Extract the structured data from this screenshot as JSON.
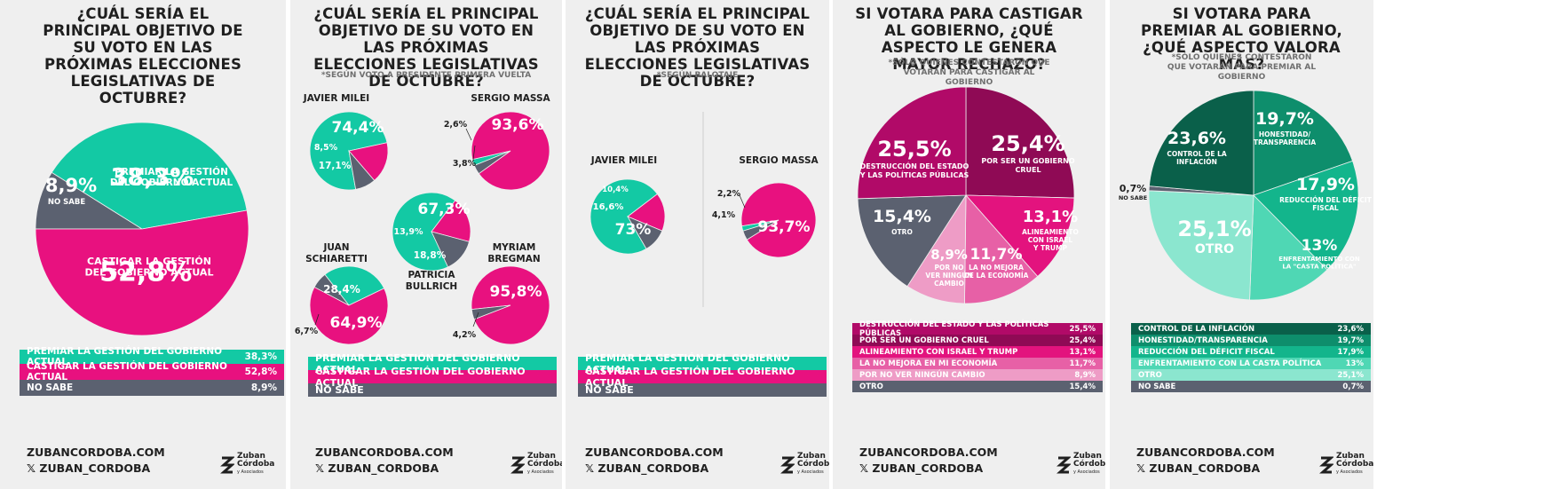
{
  "colors": {
    "teal": "#13c9a4",
    "magenta": "#e8117f",
    "gray": "#5b6170",
    "divider": "#cccccc"
  },
  "footer": {
    "site": "ZUBANCORDOBA.COM",
    "handle": "𝕏 ZUBAN_CORDOBA",
    "logo_line1": "Zuban",
    "logo_line2": "Córdoba",
    "logo_sub": "y Asociados"
  },
  "panel1": {
    "title": "¿CUÁL SERÍA EL PRINCIPAL OBJETIVO DE SU VOTO EN LAS PRÓXIMAS ELECCIONES LEGISLATIVAS DE OCTUBRE?",
    "legend": [
      {
        "label": "PREMIAR LA GESTIÓN DEL GOBIERNO ACTUAL",
        "value": "38,3%"
      },
      {
        "label": "CASTIGAR  LA GESTIÓN DEL GOBIERNO ACTUAL",
        "value": "52,8%"
      },
      {
        "label": "NO SABE",
        "value": "8,9%"
      }
    ]
  },
  "panel2": {
    "title": "¿CUÁL SERÍA EL PRINCIPAL OBJETIVO DE SU VOTO EN LAS PRÓXIMAS ELECCIONES LEGISLATIVAS DE OCTUBRE?",
    "note": "*SEGÚN VOTO A PRESIDENTE PRIMERA VUELTA",
    "legend": [
      {
        "label": "PREMIAR LA GESTIÓN DEL GOBIERNO ACTUAL"
      },
      {
        "label": "CASTIGAR LA GESTIÓN DEL GOBIERNO ACTUAL"
      },
      {
        "label": "NO SABE"
      }
    ]
  },
  "panel3": {
    "title": "¿CUÁL SERÍA EL PRINCIPAL OBJETIVO DE SU VOTO EN LAS PRÓXIMAS ELECCIONES LEGISLATIVAS DE OCTUBRE?",
    "note": "*SEGÚN BALOTAJE",
    "legend": [
      {
        "label": "PREMIAR LA GESTIÓN DEL GOBIERNO ACTUAL"
      },
      {
        "label": "CASTIGAR LA GESTIÓN DEL GOBIERNO ACTUAL"
      },
      {
        "label": "NO SABE"
      }
    ]
  },
  "panel4": {
    "title": "SI VOTARA PARA CASTIGAR AL GOBIERNO, ¿QUÉ ASPECTO LE GENERA MAYOR RECHAZO?",
    "note": "*SÓLO QUIENES CONTESTARON QUE VOTARÁN PARA CASTIGAR AL GOBIERNO",
    "legend": [
      {
        "label": "DESTRUCCIÓN DEL ESTADO Y LAS POLÍTICAS PÚBLICAS",
        "value": "25,5%"
      },
      {
        "label": "POR SER UN GOBIERNO CRUEL",
        "value": "25,4%"
      },
      {
        "label": "ALINEAMIENTO CON ISRAEL Y TRUMP",
        "value": "13,1%"
      },
      {
        "label": "LA NO MEJORA EN MI ECONOMÍA",
        "value": "11,7%"
      },
      {
        "label": "POR NO VER NINGÚN CAMBIO",
        "value": "8,9%"
      },
      {
        "label": "OTRO",
        "value": "15,4%"
      }
    ]
  },
  "panel5": {
    "title": "SI VOTARA PARA PREMIAR AL GOBIERNO, ¿QUÉ ASPECTO VALORA MÁS?",
    "note": "*SÓLO QUIENES CONTESTARON QUE VOTARÁN PARA PREMIAR AL GOBIERNO",
    "legend": [
      {
        "label": "CONTROL DE LA INFLACIÓN",
        "value": "23,6%"
      },
      {
        "label": "HONESTIDAD/TRANSPARENCIA",
        "value": "19,7%"
      },
      {
        "label": "REDUCCIÓN DEL DÉFICIT FISCAL",
        "value": "17,9%"
      },
      {
        "label": "ENFRENTAMIENTO CON LA CASTA POLÍTICA",
        "value": "13%"
      },
      {
        "label": "OTRO",
        "value": "25,1%"
      },
      {
        "label": "NO SABE",
        "value": "0,7%"
      }
    ]
  },
  "chart_data": [
    {
      "type": "pie",
      "title": "¿CUÁL SERÍA EL PRINCIPAL OBJETIVO DE SU VOTO EN LAS PRÓXIMAS ELECCIONES LEGISLATIVAS DE OCTUBRE?",
      "slices": [
        {
          "label": "PREMIAR LA GESTIÓN DEL GOBIERNO ACTUAL",
          "value": 38.3,
          "display": "38,3%",
          "color": "#13c9a4"
        },
        {
          "label": "CASTIGAR LA GESTIÓN DEL GOBIERNO ACTUAL",
          "value": 52.8,
          "display": "52,8%",
          "color": "#e8117f"
        },
        {
          "label": "NO SABE",
          "value": 8.9,
          "display": "8,9%",
          "color": "#5b6170"
        }
      ]
    },
    {
      "type": "pie",
      "title": "JAVIER MILEI",
      "slices": [
        {
          "label": "PREMIAR",
          "value": 74.4,
          "display": "74,4%",
          "color": "#13c9a4"
        },
        {
          "label": "CASTIGAR",
          "value": 17.1,
          "display": "17,1%",
          "color": "#e8117f"
        },
        {
          "label": "NO SABE",
          "value": 8.5,
          "display": "8,5%",
          "color": "#5b6170"
        }
      ]
    },
    {
      "type": "pie",
      "title": "SERGIO MASSA",
      "slices": [
        {
          "label": "PREMIAR",
          "value": 2.6,
          "display": "2,6%",
          "color": "#13c9a4"
        },
        {
          "label": "CASTIGAR",
          "value": 93.6,
          "display": "93,6%",
          "color": "#e8117f"
        },
        {
          "label": "NO SABE",
          "value": 3.8,
          "display": "3,8%",
          "color": "#5b6170"
        }
      ]
    },
    {
      "type": "pie",
      "title": "PATRICIA BULLRICH",
      "slices": [
        {
          "label": "PREMIAR",
          "value": 67.3,
          "display": "67,3%",
          "color": "#13c9a4"
        },
        {
          "label": "CASTIGAR",
          "value": 18.8,
          "display": "18,8%",
          "color": "#e8117f"
        },
        {
          "label": "NO SABE",
          "value": 13.9,
          "display": "13,9%",
          "color": "#5b6170"
        }
      ]
    },
    {
      "type": "pie",
      "title": "JUAN SCHIARETTI",
      "slices": [
        {
          "label": "PREMIAR",
          "value": 28.4,
          "display": "28,4%",
          "color": "#13c9a4"
        },
        {
          "label": "CASTIGAR",
          "value": 64.9,
          "display": "64,9%",
          "color": "#e8117f"
        },
        {
          "label": "NO SABE",
          "value": 6.7,
          "display": "6,7%",
          "color": "#5b6170"
        }
      ]
    },
    {
      "type": "pie",
      "title": "MYRIAM BREGMAN",
      "slices": [
        {
          "label": "PREMIAR",
          "value": 0,
          "display": "",
          "color": "#13c9a4"
        },
        {
          "label": "CASTIGAR",
          "value": 95.8,
          "display": "95,8%",
          "color": "#e8117f"
        },
        {
          "label": "NO SABE",
          "value": 4.2,
          "display": "4,2%",
          "color": "#5b6170"
        }
      ]
    },
    {
      "type": "pie",
      "title": "JAVIER MILEI",
      "slices": [
        {
          "label": "PREMIAR",
          "value": 73,
          "display": "73%",
          "color": "#13c9a4"
        },
        {
          "label": "CASTIGAR",
          "value": 16.6,
          "display": "16,6%",
          "color": "#e8117f"
        },
        {
          "label": "NO SABE",
          "value": 10.4,
          "display": "10,4%",
          "color": "#5b6170"
        }
      ]
    },
    {
      "type": "pie",
      "title": "SERGIO MASSA",
      "slices": [
        {
          "label": "PREMIAR",
          "value": 2.2,
          "display": "2,2%",
          "color": "#13c9a4"
        },
        {
          "label": "CASTIGAR",
          "value": 93.7,
          "display": "93,7%",
          "color": "#e8117f"
        },
        {
          "label": "NO SABE",
          "value": 4.1,
          "display": "4,1%",
          "color": "#5b6170"
        }
      ]
    },
    {
      "type": "pie",
      "title": "SI VOTARA PARA CASTIGAR AL GOBIERNO, ¿QUÉ ASPECTO LE GENERA MAYOR RECHAZO?",
      "slices": [
        {
          "label": "DESTRUCCIÓN DEL ESTADO Y LAS POLÍTICAS PÚBLICAS",
          "value": 25.5,
          "display": "25,5%",
          "color": "#b10a68"
        },
        {
          "label": "POR SER UN GOBIERNO CRUEL",
          "value": 25.4,
          "display": "25,4%",
          "color": "#8f0a55"
        },
        {
          "label": "ALINEAMIENTO CON ISRAEL Y TRUMP",
          "value": 13.1,
          "display": "13,1%",
          "color": "#e3137e"
        },
        {
          "label": "LA NO MEJORA EN MI ECONOMÍA",
          "value": 11.7,
          "display": "11,7%",
          "color": "#e760a6"
        },
        {
          "label": "POR NO VER NINGÚN CAMBIO",
          "value": 8.9,
          "display": "8,9%",
          "color": "#ee9cc6"
        },
        {
          "label": "OTRO",
          "value": 15.4,
          "display": "15,4%",
          "color": "#5b6170"
        }
      ]
    },
    {
      "type": "pie",
      "title": "SI VOTARA PARA PREMIAR AL GOBIERNO, ¿QUÉ ASPECTO VALORA MÁS?",
      "slices": [
        {
          "label": "CONTROL DE LA INFLACIÓN",
          "value": 23.6,
          "display": "23,6%",
          "color": "#0a604a"
        },
        {
          "label": "HONESTIDAD/TRANSPARENCIA",
          "value": 19.7,
          "display": "19,7%",
          "color": "#0e8e6c"
        },
        {
          "label": "REDUCCIÓN DEL DÉFICIT FISCAL",
          "value": 17.9,
          "display": "17,9%",
          "color": "#13b58c"
        },
        {
          "label": "ENFRENTAMIENTO CON LA CASTA POLÍTICA",
          "value": 13,
          "display": "13%",
          "color": "#4fd7b4"
        },
        {
          "label": "OTRO",
          "value": 25.1,
          "display": "25,1%",
          "color": "#8be6cf"
        },
        {
          "label": "NO SABE",
          "value": 0.7,
          "display": "0,7%",
          "color": "#5b6170"
        }
      ]
    }
  ]
}
